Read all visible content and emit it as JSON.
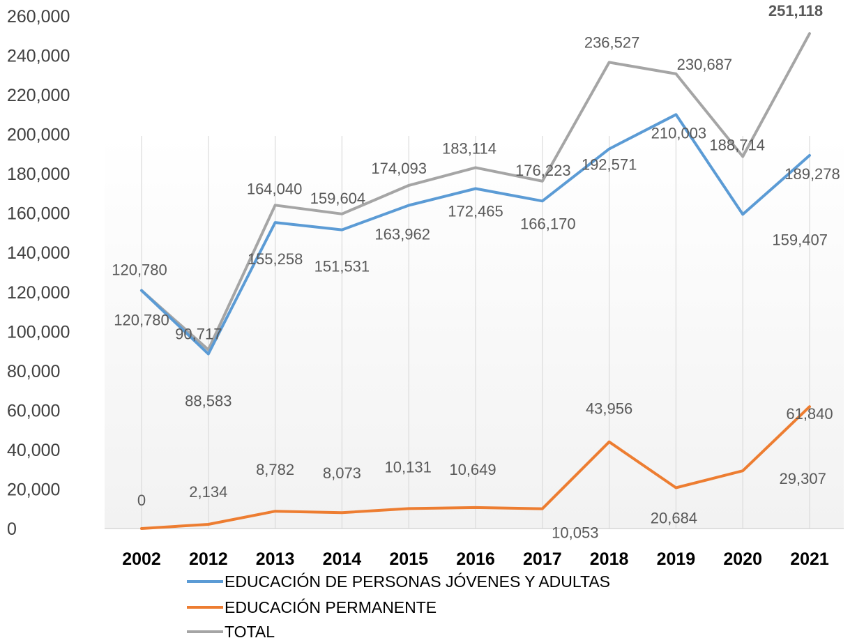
{
  "chart_data": {
    "type": "line",
    "categories": [
      "2002",
      "2012",
      "2013",
      "2014",
      "2015",
      "2016",
      "2017",
      "2018",
      "2019",
      "2020",
      "2021"
    ],
    "ylim": [
      0,
      260000
    ],
    "yticks": [
      0,
      20000,
      40000,
      60000,
      80000,
      100000,
      120000,
      140000,
      160000,
      180000,
      200000,
      220000,
      240000,
      260000
    ],
    "ytick_labels": [
      "0",
      "20,000",
      "40,000",
      "60,000",
      "80,000",
      "100,000",
      "120,000",
      "140,000",
      "160,000",
      "180,000",
      "200,000",
      "220,000",
      "240,000",
      "260,000"
    ],
    "grid": "vertical",
    "legend_position": "bottom",
    "series": [
      {
        "name": "EDUCACIÓN DE PERSONAS JÓVENES Y ADULTAS",
        "color": "#5B9BD5",
        "values": [
          120780,
          88583,
          155258,
          151531,
          163962,
          172465,
          166170,
          192571,
          210003,
          159407,
          189278
        ],
        "labels": [
          "120,780",
          "88,583",
          "155,258",
          "151,531",
          "163,962",
          "172,465",
          "166,170",
          "192,571",
          "210,003",
          "159,407",
          "189,278"
        ]
      },
      {
        "name": "EDUCACIÓN PERMANENTE",
        "color": "#ED7D31",
        "values": [
          0,
          2134,
          8782,
          8073,
          10131,
          10649,
          10053,
          43956,
          20684,
          29307,
          61840
        ],
        "labels": [
          "0",
          "2,134",
          "8,782",
          "8,073",
          "10,131",
          "10,649",
          "10,053",
          "43,956",
          "20,684",
          "29,307",
          "61,840"
        ]
      },
      {
        "name": "TOTAL",
        "color": "#A5A5A5",
        "values": [
          120780,
          90717,
          164040,
          159604,
          174093,
          183114,
          176223,
          236527,
          230687,
          188714,
          251118
        ],
        "labels": [
          "120,780",
          "90,717",
          "164,040",
          "159,604",
          "174,093",
          "183,114",
          "176,223",
          "236,527",
          "230,687",
          "188,714",
          "251,118"
        ]
      }
    ],
    "highlight": {
      "series": "TOTAL",
      "index": 10,
      "color": "#C00000"
    }
  }
}
